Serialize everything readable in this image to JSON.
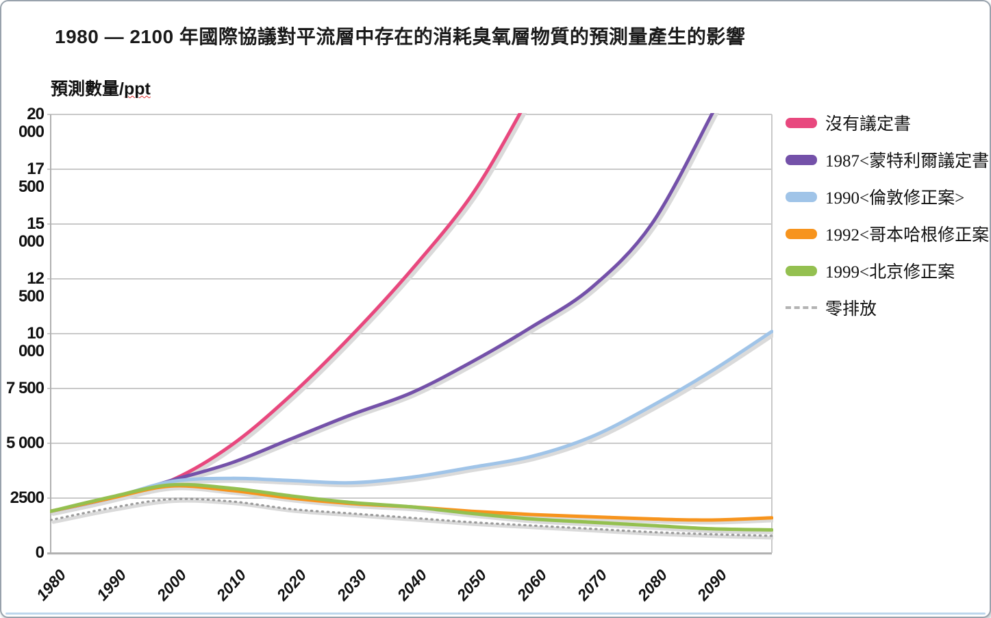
{
  "title": "1980 — 2100 年國際協議對平流層中存在的消耗臭氧層物質的預測量產生的影響",
  "y_axis_title": {
    "text": "預測數量/",
    "unit": "ppt"
  },
  "chart_data": {
    "type": "line",
    "title": "1980 — 2100 年國際協議對平流層中存在的消耗臭氧層物質的預測量產生的影響",
    "ylabel": "預測數量/ppt",
    "xlabel": "",
    "grid": true,
    "legend_position": "right",
    "xlim": [
      1980,
      2100
    ],
    "ylim": [
      0,
      20000
    ],
    "ytick_labels": [
      "20 000",
      "17 500",
      "15 000",
      "12 500",
      "10 000",
      "7 500",
      "5 000",
      "2500",
      "0"
    ],
    "ytick_values": [
      20000,
      17500,
      15000,
      12500,
      10000,
      7500,
      5000,
      2500,
      0
    ],
    "xtick_labels": [
      "1980",
      "1990",
      "2000",
      "2010",
      "2020",
      "2030",
      "2040",
      "2050",
      "2060",
      "2070",
      "2080",
      "2090"
    ],
    "xtick_values": [
      1980,
      1990,
      2000,
      2010,
      2020,
      2030,
      2040,
      2050,
      2060,
      2070,
      2080,
      2090
    ],
    "series": [
      {
        "name": "沒有議定書",
        "color": "#e8487e",
        "style": "solid",
        "x": [
          1980,
          1990,
          2000,
          2010,
          2020,
          2030,
          2040,
          2050,
          2058,
          2060
        ],
        "y": [
          1900,
          2500,
          3300,
          4900,
          7200,
          9900,
          12900,
          16300,
          20000,
          21200
        ]
      },
      {
        "name": "1987<蒙特利爾議定書>",
        "color": "#7451a9",
        "style": "solid",
        "x": [
          1980,
          1990,
          2000,
          2010,
          2020,
          2030,
          2040,
          2050,
          2060,
          2070,
          2080,
          2090,
          2092
        ],
        "y": [
          1900,
          2500,
          3300,
          4100,
          5200,
          6300,
          7300,
          8700,
          10300,
          12100,
          15000,
          20000,
          21200
        ]
      },
      {
        "name": "1990<倫敦修正案>",
        "color": "#a0c4e8",
        "style": "solid",
        "x": [
          1980,
          1990,
          2000,
          2010,
          2020,
          2030,
          2040,
          2050,
          2060,
          2070,
          2080,
          2090,
          2100
        ],
        "y": [
          1900,
          2500,
          3250,
          3400,
          3300,
          3200,
          3450,
          3900,
          4400,
          5300,
          6700,
          8300,
          10100
        ]
      },
      {
        "name": "1992<哥本哈根修正案>",
        "color": "#f7941d",
        "style": "solid",
        "x": [
          1980,
          1990,
          2000,
          2010,
          2020,
          2030,
          2040,
          2050,
          2060,
          2070,
          2080,
          2090,
          2100
        ],
        "y": [
          1900,
          2500,
          3050,
          2850,
          2500,
          2250,
          2100,
          1900,
          1750,
          1650,
          1550,
          1500,
          1600
        ]
      },
      {
        "name": "1999<北京修正案",
        "color": "#94c050",
        "style": "solid",
        "x": [
          1980,
          1990,
          2000,
          2010,
          2020,
          2030,
          2040,
          2050,
          2060,
          2070,
          2080,
          2090,
          2100
        ],
        "y": [
          1900,
          2550,
          3100,
          2950,
          2600,
          2300,
          2100,
          1800,
          1550,
          1400,
          1250,
          1100,
          1050
        ]
      },
      {
        "name": "零排放",
        "color": "#9b9b9b",
        "style": "dotted",
        "x": [
          1980,
          1990,
          2000,
          2010,
          2020,
          2030,
          2040,
          2050,
          2060,
          2070,
          2080,
          2090,
          2100
        ],
        "y": [
          1500,
          2050,
          2450,
          2350,
          2000,
          1800,
          1600,
          1400,
          1250,
          1100,
          950,
          850,
          780
        ]
      }
    ]
  }
}
